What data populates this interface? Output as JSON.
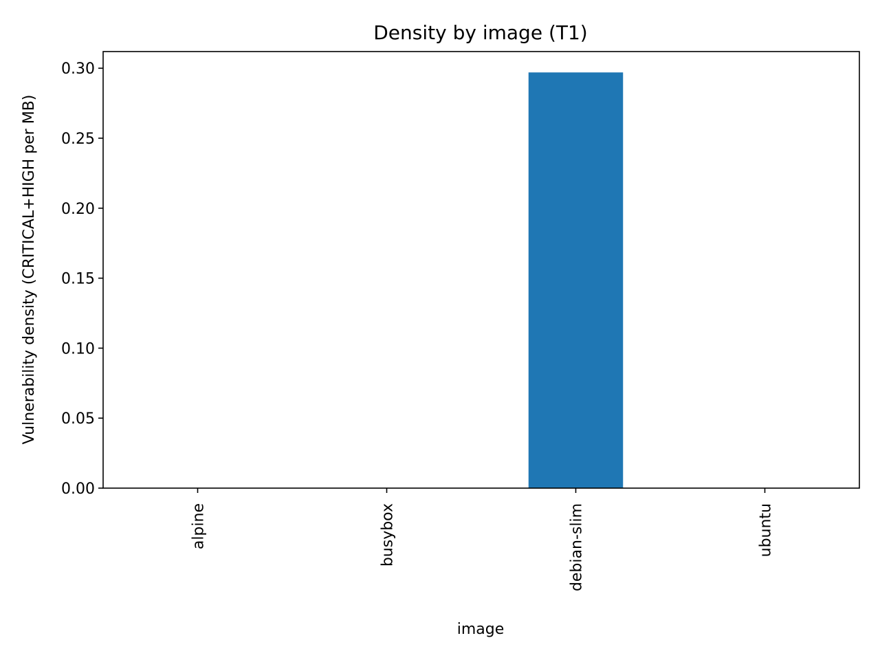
{
  "chart_data": {
    "type": "bar",
    "title": "Density by image (T1)",
    "xlabel": "image",
    "ylabel": "Vulnerability density (CRITICAL+HIGH per MB)",
    "categories": [
      "alpine",
      "busybox",
      "debian-slim",
      "ubuntu"
    ],
    "values": [
      0.0,
      0.0,
      0.297,
      0.0
    ],
    "ylim": [
      0,
      0.3119
    ],
    "yticks": [
      "0.00",
      "0.05",
      "0.10",
      "0.15",
      "0.20",
      "0.25",
      "0.30"
    ],
    "bar_color": "#1f77b4",
    "grid": false,
    "legend": false
  }
}
